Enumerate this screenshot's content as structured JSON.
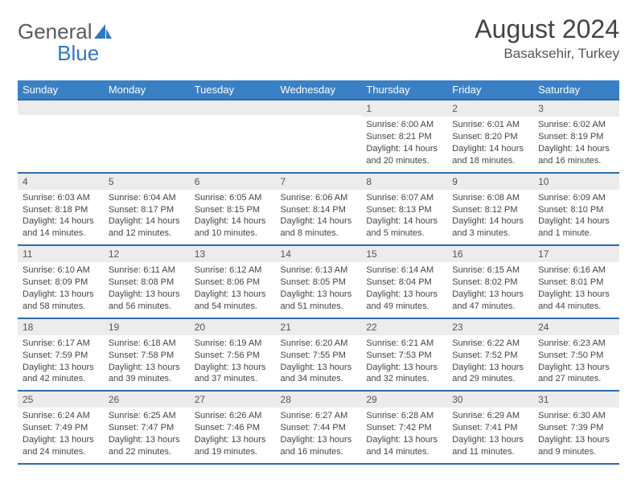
{
  "logo": {
    "text1": "General",
    "text2": "Blue"
  },
  "header": {
    "title": "August 2024",
    "location": "Basaksehir, Turkey"
  },
  "colors": {
    "th_bg": "#3a80c4",
    "th_fg": "#ffffff",
    "row_divider": "#2f6aa8",
    "daynum_bg": "#ececec",
    "text": "#444444",
    "logo_gray": "#5a5a5a",
    "logo_blue": "#2f78c2"
  },
  "weekdays": [
    "Sunday",
    "Monday",
    "Tuesday",
    "Wednesday",
    "Thursday",
    "Friday",
    "Saturday"
  ],
  "layout": {
    "first_weekday_index": 4,
    "days_in_month": 31
  },
  "days": {
    "1": {
      "sunrise": "6:00 AM",
      "sunset": "8:21 PM",
      "daylight": "14 hours and 20 minutes."
    },
    "2": {
      "sunrise": "6:01 AM",
      "sunset": "8:20 PM",
      "daylight": "14 hours and 18 minutes."
    },
    "3": {
      "sunrise": "6:02 AM",
      "sunset": "8:19 PM",
      "daylight": "14 hours and 16 minutes."
    },
    "4": {
      "sunrise": "6:03 AM",
      "sunset": "8:18 PM",
      "daylight": "14 hours and 14 minutes."
    },
    "5": {
      "sunrise": "6:04 AM",
      "sunset": "8:17 PM",
      "daylight": "14 hours and 12 minutes."
    },
    "6": {
      "sunrise": "6:05 AM",
      "sunset": "8:15 PM",
      "daylight": "14 hours and 10 minutes."
    },
    "7": {
      "sunrise": "6:06 AM",
      "sunset": "8:14 PM",
      "daylight": "14 hours and 8 minutes."
    },
    "8": {
      "sunrise": "6:07 AM",
      "sunset": "8:13 PM",
      "daylight": "14 hours and 5 minutes."
    },
    "9": {
      "sunrise": "6:08 AM",
      "sunset": "8:12 PM",
      "daylight": "14 hours and 3 minutes."
    },
    "10": {
      "sunrise": "6:09 AM",
      "sunset": "8:10 PM",
      "daylight": "14 hours and 1 minute."
    },
    "11": {
      "sunrise": "6:10 AM",
      "sunset": "8:09 PM",
      "daylight": "13 hours and 58 minutes."
    },
    "12": {
      "sunrise": "6:11 AM",
      "sunset": "8:08 PM",
      "daylight": "13 hours and 56 minutes."
    },
    "13": {
      "sunrise": "6:12 AM",
      "sunset": "8:06 PM",
      "daylight": "13 hours and 54 minutes."
    },
    "14": {
      "sunrise": "6:13 AM",
      "sunset": "8:05 PM",
      "daylight": "13 hours and 51 minutes."
    },
    "15": {
      "sunrise": "6:14 AM",
      "sunset": "8:04 PM",
      "daylight": "13 hours and 49 minutes."
    },
    "16": {
      "sunrise": "6:15 AM",
      "sunset": "8:02 PM",
      "daylight": "13 hours and 47 minutes."
    },
    "17": {
      "sunrise": "6:16 AM",
      "sunset": "8:01 PM",
      "daylight": "13 hours and 44 minutes."
    },
    "18": {
      "sunrise": "6:17 AM",
      "sunset": "7:59 PM",
      "daylight": "13 hours and 42 minutes."
    },
    "19": {
      "sunrise": "6:18 AM",
      "sunset": "7:58 PM",
      "daylight": "13 hours and 39 minutes."
    },
    "20": {
      "sunrise": "6:19 AM",
      "sunset": "7:56 PM",
      "daylight": "13 hours and 37 minutes."
    },
    "21": {
      "sunrise": "6:20 AM",
      "sunset": "7:55 PM",
      "daylight": "13 hours and 34 minutes."
    },
    "22": {
      "sunrise": "6:21 AM",
      "sunset": "7:53 PM",
      "daylight": "13 hours and 32 minutes."
    },
    "23": {
      "sunrise": "6:22 AM",
      "sunset": "7:52 PM",
      "daylight": "13 hours and 29 minutes."
    },
    "24": {
      "sunrise": "6:23 AM",
      "sunset": "7:50 PM",
      "daylight": "13 hours and 27 minutes."
    },
    "25": {
      "sunrise": "6:24 AM",
      "sunset": "7:49 PM",
      "daylight": "13 hours and 24 minutes."
    },
    "26": {
      "sunrise": "6:25 AM",
      "sunset": "7:47 PM",
      "daylight": "13 hours and 22 minutes."
    },
    "27": {
      "sunrise": "6:26 AM",
      "sunset": "7:46 PM",
      "daylight": "13 hours and 19 minutes."
    },
    "28": {
      "sunrise": "6:27 AM",
      "sunset": "7:44 PM",
      "daylight": "13 hours and 16 minutes."
    },
    "29": {
      "sunrise": "6:28 AM",
      "sunset": "7:42 PM",
      "daylight": "13 hours and 14 minutes."
    },
    "30": {
      "sunrise": "6:29 AM",
      "sunset": "7:41 PM",
      "daylight": "13 hours and 11 minutes."
    },
    "31": {
      "sunrise": "6:30 AM",
      "sunset": "7:39 PM",
      "daylight": "13 hours and 9 minutes."
    }
  },
  "labels": {
    "sunrise": "Sunrise: ",
    "sunset": "Sunset: ",
    "daylight": "Daylight: "
  }
}
